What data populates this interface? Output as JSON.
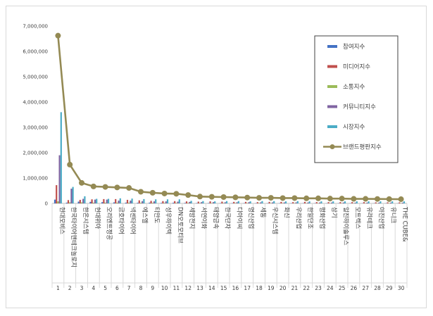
{
  "chart_data": {
    "type": "bar",
    "ylim": [
      0,
      7000000
    ],
    "y_ticks": [
      "0",
      "1,000,000",
      "2,000,000",
      "3,000,000",
      "4,000,000",
      "5,000,000",
      "6,000,000",
      "7,000,000"
    ],
    "y_tick_values": [
      0,
      1000000,
      2000000,
      3000000,
      4000000,
      5000000,
      6000000,
      7000000
    ],
    "categories": [
      "현대모비스",
      "한국타이어앤테크놀로지",
      "한온시스템",
      "현대위아",
      "오리엔트정공",
      "금호타이어",
      "넥센타이어",
      "에스엘",
      "티만도",
      "성우하이텍",
      "DN오토모티브",
      "세방전지",
      "서연이화",
      "태양금속",
      "한국단자",
      "디아이씨",
      "명신산업",
      "세동",
      "우신시스템",
      "화신",
      "우리산업",
      "한일단조",
      "평화산업",
      "삼기",
      "일진하이솔루스",
      "모트렉스",
      "유라테크",
      "아진산업",
      "유니크",
      "THE CUBE&"
    ],
    "index_labels": [
      "1",
      "2",
      "3",
      "4",
      "5",
      "6",
      "7",
      "8",
      "9",
      "10",
      "11",
      "12",
      "13",
      "14",
      "15",
      "16",
      "17",
      "18",
      "19",
      "20",
      "21",
      "22",
      "23",
      "24",
      "25",
      "26",
      "27",
      "28",
      "29",
      "30"
    ],
    "legend_position": "right",
    "grid": false,
    "series": [
      {
        "name": "참여지수",
        "kind": "bar",
        "color": "#4472c4",
        "values": [
          150000,
          30000,
          70000,
          60000,
          50000,
          40000,
          30000,
          25000,
          30000,
          20000,
          25000,
          20000,
          15000,
          15000,
          12000,
          12000,
          12000,
          10000,
          10000,
          10000,
          10000,
          10000,
          10000,
          8000,
          10000,
          10000,
          8000,
          8000,
          8000,
          8000
        ]
      },
      {
        "name": "미디어지수",
        "kind": "bar",
        "color": "#c0504d",
        "values": [
          720000,
          130000,
          140000,
          160000,
          170000,
          170000,
          140000,
          120000,
          100000,
          90000,
          90000,
          80000,
          70000,
          80000,
          70000,
          60000,
          60000,
          50000,
          60000,
          60000,
          50000,
          60000,
          50000,
          50000,
          50000,
          50000,
          50000,
          40000,
          40000,
          40000
        ]
      },
      {
        "name": "소통지수",
        "kind": "bar",
        "color": "#9bbb59",
        "values": [
          80000,
          40000,
          40000,
          30000,
          30000,
          30000,
          30000,
          25000,
          25000,
          20000,
          20000,
          20000,
          15000,
          15000,
          15000,
          15000,
          15000,
          12000,
          12000,
          12000,
          12000,
          12000,
          12000,
          10000,
          10000,
          10000,
          10000,
          10000,
          10000,
          10000
        ]
      },
      {
        "name": "커뮤니티지수",
        "kind": "bar",
        "color": "#8064a2",
        "values": [
          1900000,
          580000,
          180000,
          150000,
          150000,
          110000,
          110000,
          90000,
          80000,
          80000,
          70000,
          60000,
          50000,
          50000,
          45000,
          45000,
          45000,
          40000,
          40000,
          40000,
          40000,
          35000,
          35000,
          35000,
          35000,
          30000,
          30000,
          30000,
          30000,
          30000
        ]
      },
      {
        "name": "시장지수",
        "kind": "bar",
        "color": "#4bacc6",
        "values": [
          3600000,
          650000,
          280000,
          180000,
          180000,
          200000,
          190000,
          170000,
          160000,
          160000,
          160000,
          100000,
          90000,
          80000,
          90000,
          90000,
          80000,
          90000,
          90000,
          80000,
          90000,
          80000,
          80000,
          80000,
          80000,
          80000,
          80000,
          80000,
          80000,
          80000
        ]
      },
      {
        "name": "브랜드평판지수",
        "kind": "line",
        "color": "#948a54",
        "values": [
          6620000,
          1530000,
          810000,
          670000,
          650000,
          630000,
          610000,
          460000,
          420000,
          390000,
          380000,
          330000,
          270000,
          260000,
          250000,
          240000,
          230000,
          220000,
          220000,
          210000,
          210000,
          200000,
          200000,
          190000,
          190000,
          180000,
          180000,
          175000,
          170000,
          165000
        ]
      }
    ]
  }
}
